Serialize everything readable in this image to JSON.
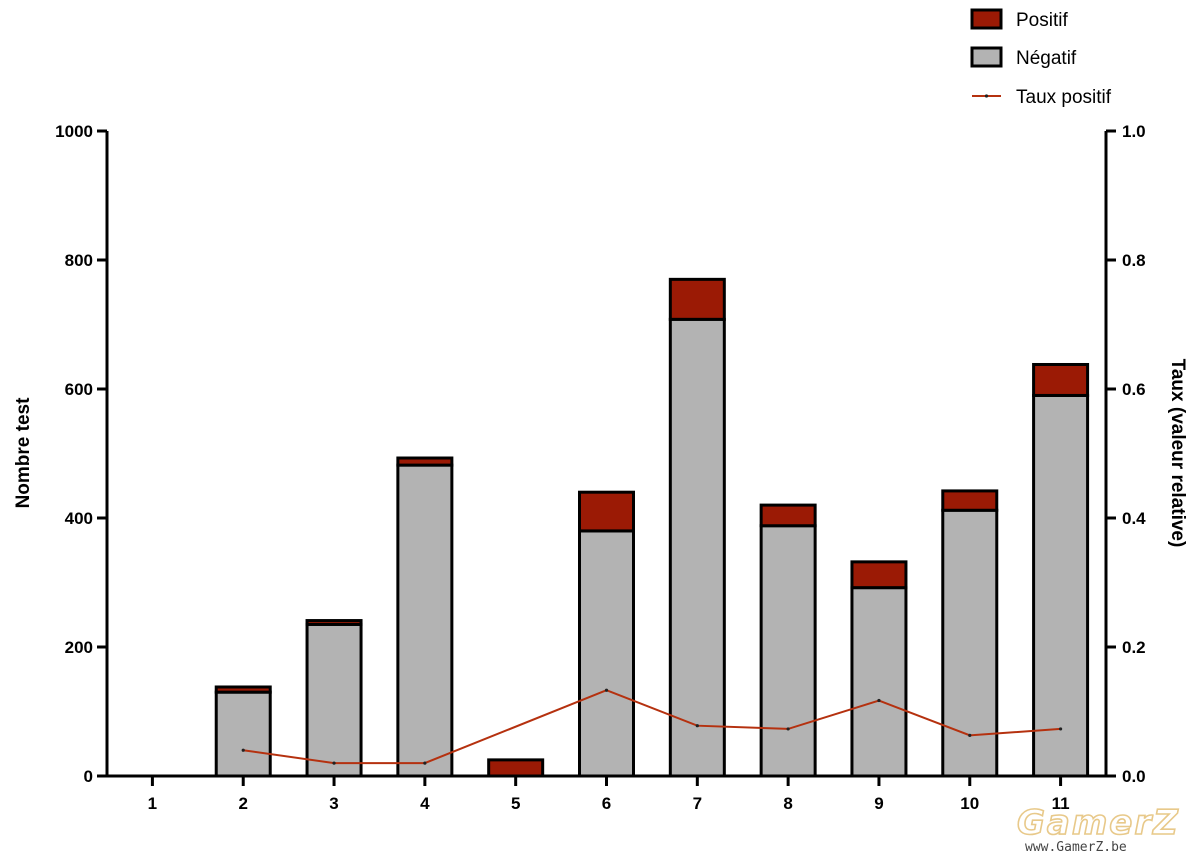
{
  "chart_data": {
    "type": "bar",
    "stacked": true,
    "categories": [
      "1",
      "2",
      "3",
      "4",
      "5",
      "6",
      "7",
      "8",
      "9",
      "10",
      "11"
    ],
    "series": [
      {
        "name": "Négatif",
        "kind": "bar",
        "axis": "left",
        "color": "#b3b3b3",
        "values": [
          0,
          130,
          235,
          482,
          0,
          380,
          708,
          388,
          292,
          412,
          590
        ]
      },
      {
        "name": "Positif",
        "kind": "bar",
        "axis": "left",
        "color": "#9b1a05",
        "values": [
          0,
          8,
          6,
          11,
          25,
          60,
          62,
          32,
          40,
          30,
          48
        ]
      },
      {
        "name": "Taux positif",
        "kind": "line",
        "axis": "right",
        "color": "#b5310f",
        "values": [
          null,
          0.04,
          0.02,
          0.02,
          null,
          0.133,
          0.078,
          0.073,
          0.117,
          0.063,
          0.073
        ]
      }
    ],
    "ylabel": "Nombre test",
    "y2label": "Taux (valeur relative)",
    "ylim": [
      0,
      1000
    ],
    "y2lim": [
      0,
      1.0
    ],
    "yticks": [
      "0",
      "200",
      "400",
      "600",
      "800",
      "1000"
    ],
    "y2ticks": [
      "0.0",
      "0.2",
      "0.4",
      "0.6",
      "0.8",
      "1.0"
    ],
    "legend": {
      "placement": "top-right",
      "items": [
        "Positif",
        "Négatif",
        "Taux positif"
      ]
    },
    "grid": false
  },
  "watermark": {
    "logo_text": "GamerZ",
    "url_text": "www.GamerZ.be"
  }
}
